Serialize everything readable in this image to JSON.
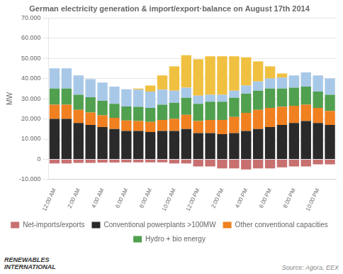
{
  "chart_data": {
    "type": "bar",
    "stacked": true,
    "title": "German electricity generation & import/export·balance on August 17th 2014",
    "y_label": "MW",
    "categories": [
      "12:00 AM",
      null,
      "2:00 AM",
      null,
      "4:00 AM",
      null,
      "6:00 AM",
      null,
      "8:00 AM",
      null,
      "10:00 AM",
      null,
      "12:00 PM",
      null,
      "2:00 PM",
      null,
      "4:00 PM",
      null,
      "6:00 PM",
      null,
      "8:00 PM",
      null,
      "10:00 PM",
      null
    ],
    "series": [
      {
        "name": "Net-imports/exports",
        "color": "#c87070",
        "values": [
          -2000,
          -2000,
          -1800,
          -1800,
          -1600,
          -1600,
          -1500,
          -1500,
          -1500,
          -1500,
          -2000,
          -2000,
          -3500,
          -3500,
          -4500,
          -4500,
          -5000,
          -4500,
          -4500,
          -4000,
          -3500,
          -3500,
          -2500,
          -2500
        ]
      },
      {
        "name": "Conventional powerplants >100MW",
        "color": "#2a2a2a",
        "values": [
          20000,
          20000,
          18000,
          17000,
          16000,
          15000,
          14000,
          14000,
          13500,
          14000,
          14000,
          15000,
          13000,
          13000,
          12500,
          13000,
          14000,
          15000,
          16000,
          17000,
          18000,
          19000,
          18000,
          17000
        ]
      },
      {
        "name": "Other conventional capacities",
        "color": "#f08020",
        "values": [
          7000,
          7000,
          6500,
          6200,
          5800,
          5500,
          5200,
          5000,
          5000,
          5500,
          6000,
          7000,
          6000,
          6500,
          7000,
          8000,
          9000,
          9500,
          9500,
          9000,
          8500,
          8000,
          7500,
          7000
        ]
      },
      {
        "name": "Hydro + bio energy",
        "color": "#50a050",
        "values": [
          8000,
          8000,
          7500,
          7500,
          7200,
          7000,
          7000,
          7000,
          7000,
          7500,
          8000,
          8500,
          8500,
          9000,
          9000,
          9500,
          9500,
          9500,
          9500,
          9000,
          9000,
          9000,
          8000,
          8000
        ]
      },
      {
        "color": "#a8c8e8",
        "values": [
          10000,
          10000,
          9500,
          9000,
          9000,
          8500,
          8500,
          8500,
          8000,
          7500,
          6000,
          5000,
          4000,
          3500,
          3500,
          3500,
          4000,
          4500,
          5000,
          5500,
          6000,
          7000,
          8000,
          8000
        ]
      },
      {
        "color": "#f0c040",
        "values": [
          0,
          0,
          0,
          0,
          0,
          0,
          0,
          500,
          3000,
          7000,
          12000,
          16000,
          18000,
          19000,
          19000,
          17000,
          14000,
          10000,
          6000,
          2000,
          0,
          0,
          0,
          0
        ]
      }
    ],
    "ylim": [
      -10000,
      70000
    ],
    "yticks": [
      {
        "value": -10000,
        "label": "-10.000"
      },
      0,
      {
        "value": 10000,
        "label": "10.000"
      },
      {
        "value": 20000,
        "label": "20.000"
      },
      {
        "value": 30000,
        "label": "30.000"
      },
      {
        "value": 40000,
        "label": "40.000"
      },
      {
        "value": 50000,
        "label": "50.000"
      },
      {
        "value": 60000,
        "label": "60.000"
      },
      {
        "value": 70000,
        "label": "70.000"
      }
    ],
    "grid": true,
    "legend": "bottom",
    "annotations": [
      "Source: Agora, EEX",
      "RENEWABLES\nINTERNATIONAL"
    ]
  }
}
